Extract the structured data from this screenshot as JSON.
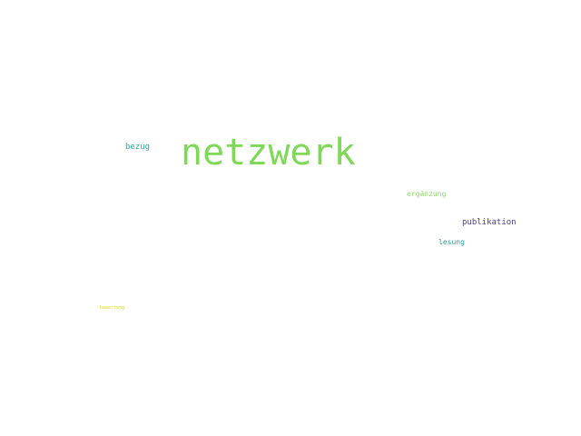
{
  "words": [
    {
      "text": "netzwerk",
      "color": "#7ed957"
    },
    {
      "text": "bezug",
      "color": "#2fa89b"
    },
    {
      "text": "ergänzung",
      "color": "#8fd96a"
    },
    {
      "text": "publikation",
      "color": "#4a3f8f"
    },
    {
      "text": "lesung",
      "color": "#2a9da3"
    },
    {
      "text": "bewertung",
      "color": "#d6e021"
    }
  ]
}
